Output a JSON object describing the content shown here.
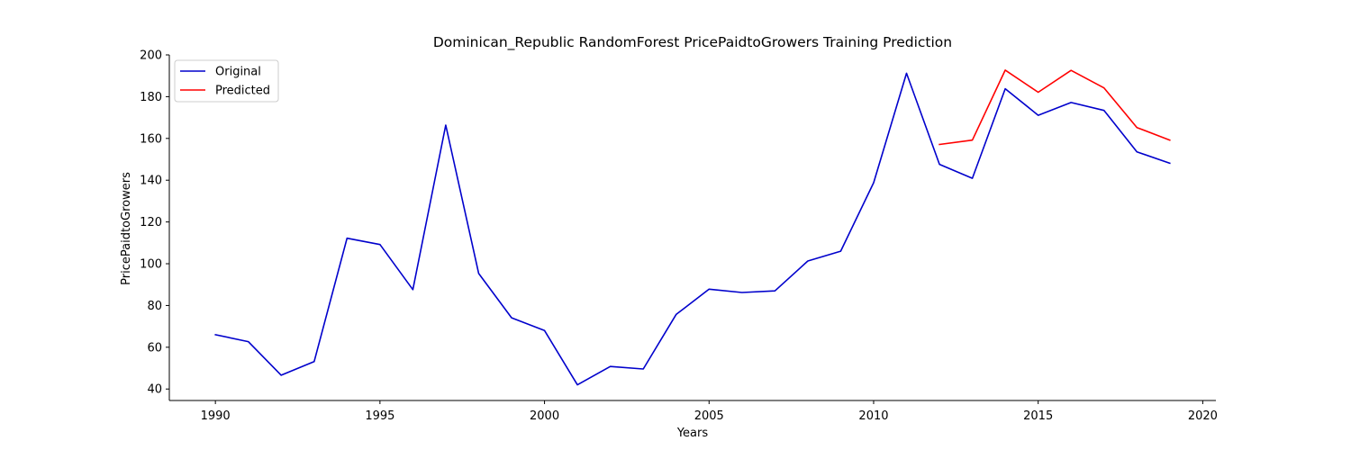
{
  "chart_data": {
    "type": "line",
    "title": "Dominican_Republic RandomForest PricePaidtoGrowers Training Prediction",
    "xlabel": "Years",
    "ylabel": "PricePaidtoGrowers",
    "xlim": [
      1988.6,
      2020.4
    ],
    "ylim": [
      34.5,
      200
    ],
    "x_ticks": [
      1990,
      1995,
      2000,
      2005,
      2010,
      2015,
      2020
    ],
    "y_ticks": [
      40,
      60,
      80,
      100,
      120,
      140,
      160,
      180,
      200
    ],
    "grid": false,
    "legend_position": "top-left",
    "series": [
      {
        "name": "Original",
        "color": "#0000cc",
        "x": [
          1990,
          1991,
          1992,
          1993,
          1994,
          1995,
          1996,
          1997,
          1998,
          1999,
          2000,
          2001,
          2002,
          2003,
          2004,
          2005,
          2006,
          2007,
          2008,
          2009,
          2010,
          2011,
          2012,
          2013,
          2014,
          2015,
          2016,
          2017,
          2018,
          2019
        ],
        "y": [
          66.0,
          62.7,
          46.6,
          53.1,
          112.2,
          109.2,
          87.6,
          166.4,
          95.3,
          74.1,
          68.0,
          42.0,
          50.8,
          49.6,
          75.7,
          87.8,
          86.2,
          87.0,
          101.3,
          106.0,
          138.8,
          191.2,
          147.6,
          140.9,
          183.8,
          171.1,
          177.2,
          173.4,
          153.6,
          148.1
        ]
      },
      {
        "name": "Predicted",
        "color": "#ff0000",
        "x": [
          2012,
          2013,
          2014,
          2015,
          2016,
          2017,
          2018,
          2019
        ],
        "y": [
          157.1,
          159.2,
          192.7,
          182.1,
          192.6,
          184.2,
          165.2,
          159.2
        ]
      }
    ]
  }
}
